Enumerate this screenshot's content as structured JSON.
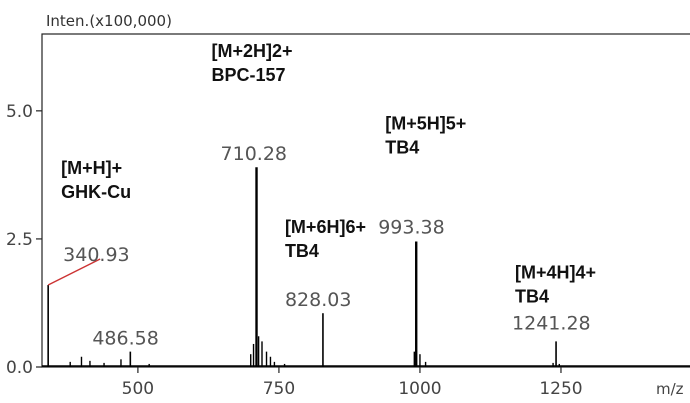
{
  "chart_data": {
    "type": "line",
    "ylabel": "Inten.(x100,000)",
    "xlabel": "m/z",
    "xlim": [
      330,
      1500
    ],
    "ylim": [
      0,
      6.5
    ],
    "x_ticks": [
      500,
      750,
      1000,
      1250
    ],
    "y_ticks": [
      {
        "value": 0.0,
        "label": "0.0"
      },
      {
        "value": 2.5,
        "label": "2.5"
      },
      {
        "value": 5.0,
        "label": "5.0"
      }
    ],
    "peaks": [
      {
        "x": 340.93,
        "y": 1.6,
        "label": "340.93",
        "annotation": [
          "[M+H]+",
          "GHK-Cu"
        ]
      },
      {
        "x": 486.58,
        "y": 0.3,
        "label": "486.58",
        "annotation": []
      },
      {
        "x": 710.28,
        "y": 3.9,
        "label": "710.28",
        "annotation": [
          "[M+2H]2+",
          "BPC-157"
        ]
      },
      {
        "x": 828.03,
        "y": 1.05,
        "label": "828.03",
        "annotation": [
          "[M+6H]6+",
          "TB4"
        ]
      },
      {
        "x": 993.38,
        "y": 2.45,
        "label": "993.38",
        "annotation": [
          "[M+5H]5+",
          "TB4"
        ]
      },
      {
        "x": 1241.28,
        "y": 0.5,
        "label": "1241.28",
        "annotation": [
          "[M+4H]4+",
          "TB4"
        ]
      }
    ],
    "minor_peaks": [
      {
        "x": 380,
        "y": 0.1
      },
      {
        "x": 400,
        "y": 0.2
      },
      {
        "x": 415,
        "y": 0.12
      },
      {
        "x": 440,
        "y": 0.08
      },
      {
        "x": 470,
        "y": 0.15
      },
      {
        "x": 520,
        "y": 0.06
      },
      {
        "x": 700,
        "y": 0.25
      },
      {
        "x": 705,
        "y": 0.45
      },
      {
        "x": 714,
        "y": 0.6
      },
      {
        "x": 720,
        "y": 0.5
      },
      {
        "x": 728,
        "y": 0.3
      },
      {
        "x": 735,
        "y": 0.2
      },
      {
        "x": 742,
        "y": 0.1
      },
      {
        "x": 760,
        "y": 0.06
      },
      {
        "x": 990,
        "y": 0.3
      },
      {
        "x": 1000,
        "y": 0.25
      },
      {
        "x": 1010,
        "y": 0.1
      },
      {
        "x": 1236,
        "y": 0.08
      },
      {
        "x": 1247,
        "y": 0.06
      }
    ],
    "colors": {
      "trace": "#000000",
      "axis": "#222222",
      "leader": "#cc3333"
    }
  }
}
